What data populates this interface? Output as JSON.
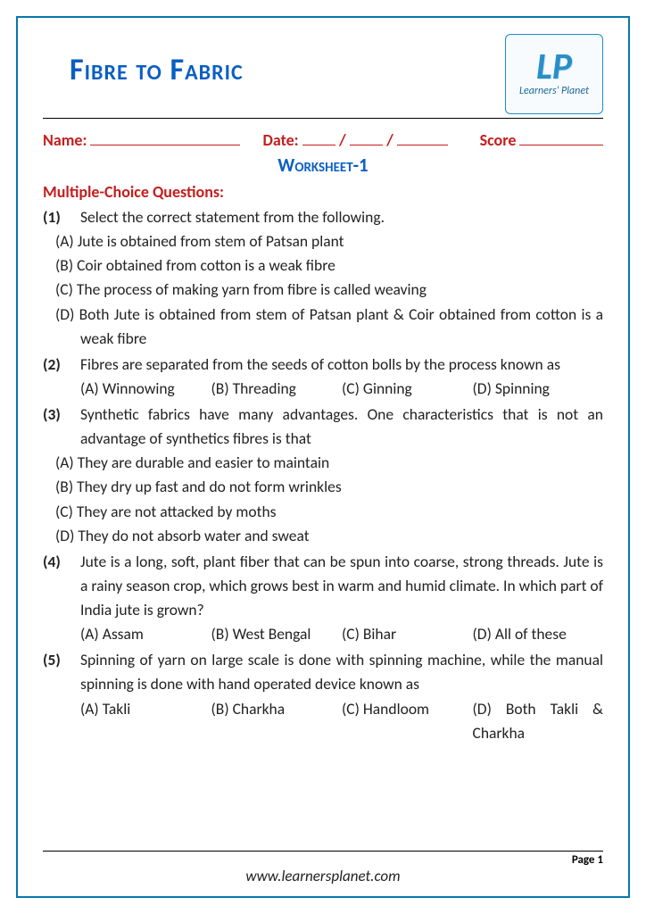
{
  "title": "Fibre to Fabric",
  "logo": {
    "initials": "LP",
    "brand": "Learners' Planet"
  },
  "info": {
    "name_label": "Name:",
    "date_label": "Date:",
    "score_label": "Score"
  },
  "worksheet_label": "Worksheet-1",
  "section_heading": "Multiple-Choice Questions:",
  "questions": [
    {
      "num": "(1)",
      "text": "Select the correct statement from the following.",
      "layout": "block",
      "options": [
        "(A) Jute is obtained from stem of Patsan plant",
        "(B) Coir obtained from cotton is a weak fibre",
        "(C) The process of making yarn from fibre is called weaving",
        "(D) Both Jute is obtained from stem of Patsan plant & Coir obtained from cotton is a weak fibre"
      ]
    },
    {
      "num": "(2)",
      "text": "Fibres are separated from the seeds of cotton bolls by the process known as",
      "layout": "inline",
      "options": [
        "(A) Winnowing",
        "(B) Threading",
        "(C) Ginning",
        "(D) Spinning"
      ]
    },
    {
      "num": "(3)",
      "text": "Synthetic fabrics have many advantages. One characteristics that is not an advantage of synthetics fibres is that",
      "layout": "block",
      "options": [
        "(A) They are durable and easier to maintain",
        "(B) They dry up fast and do not form wrinkles",
        "(C) They are not attacked by moths",
        "(D) They do not absorb water and sweat"
      ]
    },
    {
      "num": "(4)",
      "text": "Jute is a long, soft, plant fiber that can be spun into coarse, strong threads. Jute is a rainy season crop, which grows best in warm and humid climate. In which part of India jute is grown?",
      "layout": "inline",
      "options": [
        "(A) Assam",
        "(B) West Bengal",
        "(C) Bihar",
        "(D) All of these"
      ]
    },
    {
      "num": "(5)",
      "text": "Spinning of yarn on large scale is done with spinning machine, while the manual spinning is done with hand operated device known as",
      "layout": "inline",
      "options": [
        "(A) Takli",
        "(B) Charkha",
        "(C) Handloom",
        "(D) Both Takli & Charkha"
      ]
    }
  ],
  "footer": {
    "page_label": "Page 1",
    "url": "www.learnersplanet.com"
  },
  "colors": {
    "border": "#0877a8",
    "title": "#0a5fc2",
    "accent_red": "#c41e1e",
    "body_text": "#222222"
  }
}
